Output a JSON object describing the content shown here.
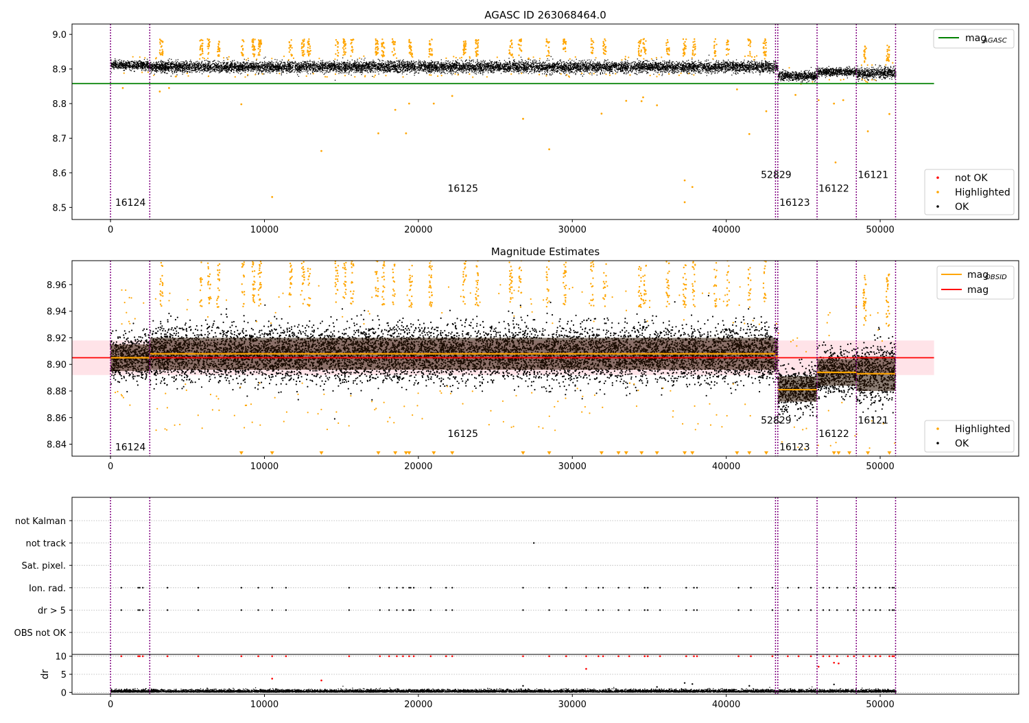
{
  "figure": {
    "width": 1500,
    "height": 1050
  },
  "colors": {
    "ok": "#000000",
    "highlighted": "#FFA500",
    "not_ok": "#FF0000",
    "agasc_line": "#008000",
    "obsid_mag": "#FFA500",
    "mag_line": "#FF0000",
    "mag_band": "#FFC0CB",
    "obsid_band": "#2B1300",
    "boundary": "#800080",
    "grid": "#B0B0B0"
  },
  "chart_data": [
    {
      "type": "scatter",
      "title": "AGASC ID 263068464.0",
      "xlim": [
        -2500,
        59000
      ],
      "ylim": [
        8.465,
        9.03
      ],
      "x_ticks": [
        0,
        10000,
        20000,
        30000,
        40000,
        50000
      ],
      "x_tick_labels": [
        "0",
        "10000",
        "20000",
        "30000",
        "40000",
        "50000"
      ],
      "y_ticks": [
        8.5,
        8.6,
        8.7,
        8.8,
        8.9,
        9.0
      ],
      "y_tick_labels": [
        "8.5",
        "8.6",
        "8.7",
        "8.8",
        "8.9",
        "9.0"
      ],
      "agasc_mag": 8.858,
      "agasc_mag_xrange": [
        -2500,
        53500
      ],
      "obsid_boundaries": [
        0,
        2550,
        43200,
        43350,
        45900,
        48450,
        51000
      ],
      "obsids": [
        {
          "label": "16124",
          "x": 300,
          "y": 8.505
        },
        {
          "label": "16125",
          "x": 21900,
          "y": 8.545
        },
        {
          "label": "52829",
          "x": 42250,
          "y": 8.585
        },
        {
          "label": "16123",
          "x": 43450,
          "y": 8.505
        },
        {
          "label": "16122",
          "x": 46000,
          "y": 8.545
        },
        {
          "label": "16121",
          "x": 48550,
          "y": 8.585
        }
      ],
      "ok_segments": [
        {
          "x": [
            0,
            2550
          ],
          "center": 8.912,
          "halfwidth": 0.016
        },
        {
          "x": [
            2550,
            43200
          ],
          "center": 8.907,
          "halfwidth": 0.021
        },
        {
          "x": [
            43200,
            43350
          ],
          "center": 8.905,
          "halfwidth": 0.02
        },
        {
          "x": [
            43350,
            45900
          ],
          "center": 8.881,
          "halfwidth": 0.017
        },
        {
          "x": [
            45900,
            48450
          ],
          "center": 8.893,
          "halfwidth": 0.015
        },
        {
          "x": [
            48450,
            51000
          ],
          "center": 8.889,
          "halfwidth": 0.02
        }
      ],
      "highlighted_points": [
        [
          800,
          8.845
        ],
        [
          3200,
          8.835
        ],
        [
          3800,
          8.845
        ],
        [
          8500,
          8.798
        ],
        [
          10500,
          8.53
        ],
        [
          13700,
          8.663
        ],
        [
          17400,
          8.714
        ],
        [
          18500,
          8.782
        ],
        [
          19200,
          8.714
        ],
        [
          19400,
          8.8
        ],
        [
          21000,
          8.8
        ],
        [
          22200,
          8.822
        ],
        [
          26800,
          8.756
        ],
        [
          28500,
          8.668
        ],
        [
          31900,
          8.771
        ],
        [
          33500,
          8.808
        ],
        [
          34500,
          8.807
        ],
        [
          34600,
          8.818
        ],
        [
          35500,
          8.795
        ],
        [
          37300,
          8.578
        ],
        [
          37300,
          8.515
        ],
        [
          37800,
          8.559
        ],
        [
          40700,
          8.841
        ],
        [
          41500,
          8.712
        ],
        [
          42600,
          8.778
        ],
        [
          44500,
          8.825
        ],
        [
          46000,
          8.81
        ],
        [
          47000,
          8.8
        ],
        [
          47100,
          8.63
        ],
        [
          47600,
          8.81
        ],
        [
          49200,
          8.72
        ],
        [
          50600,
          8.77
        ]
      ],
      "highlighted_columns": [
        3300,
        5900,
        6400,
        7000,
        8600,
        9300,
        9700,
        11700,
        12500,
        12900,
        14700,
        15200,
        15700,
        17300,
        17700,
        18400,
        19500,
        20800,
        23000,
        23800,
        26000,
        26600,
        28400,
        29500,
        31300,
        32100,
        34400,
        34700,
        36200,
        37300,
        37900,
        39300,
        40100,
        41500,
        42500,
        49000,
        50500
      ],
      "legend": [
        {
          "kind": "line",
          "color": "#008000",
          "label": "mag",
          "sub": "AGASC"
        }
      ],
      "legend2": [
        {
          "kind": "dot",
          "color": "#FF0000",
          "label": "not OK"
        },
        {
          "kind": "dot",
          "color": "#FFA500",
          "label": "Highlighted"
        },
        {
          "kind": "dot",
          "color": "#000000",
          "label": "OK"
        }
      ]
    },
    {
      "type": "scatter",
      "title": "Magnitude Estimates",
      "xlim": [
        -2500,
        59000
      ],
      "ylim": [
        8.831,
        8.978
      ],
      "x_ticks": [
        0,
        10000,
        20000,
        30000,
        40000,
        50000
      ],
      "x_tick_labels": [
        "0",
        "10000",
        "20000",
        "30000",
        "40000",
        "50000"
      ],
      "y_ticks": [
        8.84,
        8.86,
        8.88,
        8.9,
        8.92,
        8.94,
        8.96
      ],
      "y_tick_labels": [
        "8.84",
        "8.86",
        "8.88",
        "8.90",
        "8.92",
        "8.94",
        "8.96"
      ],
      "mag": 8.905,
      "mag_band": [
        8.892,
        8.918
      ],
      "mag_xrange": [
        -2500,
        53500
      ],
      "obsid_mags": [
        {
          "x": [
            0,
            2550
          ],
          "mag": 8.905,
          "band": [
            8.895,
            8.915
          ]
        },
        {
          "x": [
            2550,
            43200
          ],
          "mag": 8.908,
          "band": [
            8.896,
            8.92
          ]
        },
        {
          "x": [
            43200,
            43350
          ],
          "mag": 8.906,
          "band": [
            8.896,
            8.918
          ]
        },
        {
          "x": [
            43350,
            45900
          ],
          "mag": 8.881,
          "band": [
            8.872,
            8.891
          ]
        },
        {
          "x": [
            45900,
            48450
          ],
          "mag": 8.894,
          "band": [
            8.884,
            8.904
          ]
        },
        {
          "x": [
            48450,
            51000
          ],
          "mag": 8.893,
          "band": [
            8.88,
            8.906
          ]
        }
      ],
      "obsid_boundaries": [
        0,
        2550,
        43200,
        43350,
        45900,
        48450,
        51000
      ],
      "obsids": [
        {
          "label": "16124",
          "x": 300,
          "y": 8.8355
        },
        {
          "label": "16125",
          "x": 21900,
          "y": 8.8455
        },
        {
          "label": "52829",
          "x": 42250,
          "y": 8.8555
        },
        {
          "label": "16123",
          "x": 43450,
          "y": 8.8355
        },
        {
          "label": "16122",
          "x": 46000,
          "y": 8.8455
        },
        {
          "label": "16121",
          "x": 48550,
          "y": 8.8555
        }
      ],
      "clipped_markers_x": [
        8500,
        10500,
        13700,
        17400,
        18500,
        19200,
        19400,
        21000,
        22200,
        26800,
        28500,
        31900,
        33000,
        33500,
        34500,
        35500,
        37300,
        37800,
        40700,
        41500,
        42600,
        47000,
        47300,
        48000,
        49200,
        50600
      ],
      "legend": [
        {
          "kind": "line",
          "color": "#FFA500",
          "label": "mag",
          "sub": "OBSID"
        },
        {
          "kind": "line",
          "color": "#FF0000",
          "label": "mag",
          "sub": ""
        }
      ],
      "legend2": [
        {
          "kind": "dot",
          "color": "#FFA500",
          "label": "Highlighted"
        },
        {
          "kind": "dot",
          "color": "#000000",
          "label": "OK"
        }
      ]
    },
    {
      "type": "scatter",
      "title": "",
      "xlim": [
        -2500,
        59000
      ],
      "flag_rows": [
        "not Kalman",
        "not track",
        "Sat. pixel.",
        "Ion. rad.",
        "dr > 5",
        "OBS not OK"
      ],
      "flag_points": {
        "not track": [
          27500
        ],
        "Ion. rad.": [
          700,
          1800,
          1900,
          2100,
          3700,
          5700,
          8500,
          9600,
          10500,
          11400,
          15500,
          17500,
          18100,
          18600,
          19000,
          19400,
          19500,
          19700,
          20800,
          21800,
          22200,
          26800,
          28500,
          29600,
          30900,
          31700,
          32000,
          33000,
          33700,
          34700,
          34900,
          35700,
          37400,
          37900,
          38100,
          40800,
          41600,
          43000,
          44000,
          44700,
          45500,
          46300,
          46700,
          47200,
          47900,
          48300,
          48900,
          49300,
          49700,
          50000,
          50600,
          50800,
          50900
        ],
        "dr > 5": [
          700,
          1800,
          1900,
          2100,
          3700,
          5700,
          8500,
          9600,
          10500,
          11400,
          15500,
          17500,
          18100,
          18600,
          19000,
          19400,
          19500,
          19700,
          20800,
          21800,
          22200,
          26800,
          28500,
          29600,
          30900,
          31700,
          32000,
          33000,
          33700,
          34700,
          34900,
          35700,
          37400,
          37900,
          38100,
          40800,
          41600,
          43000,
          44000,
          44700,
          45500,
          46300,
          46700,
          47200,
          47900,
          48300,
          48900,
          49300,
          49700,
          50000,
          50600,
          50800,
          50900
        ]
      },
      "obsid_boundaries": [
        0,
        2550,
        43200,
        43350,
        45900,
        48450,
        51000
      ],
      "dr": {
        "ylabel": "dr",
        "ylim": [
          -0.5,
          10.5
        ],
        "y_ticks": [
          0,
          5,
          10
        ],
        "y_tick_labels": [
          "0",
          "5",
          "10"
        ],
        "x_ticks": [
          0,
          10000,
          20000,
          30000,
          40000,
          50000
        ],
        "x_tick_labels": [
          "0",
          "10000",
          "20000",
          "30000",
          "40000",
          "50000"
        ],
        "red_points": [
          [
            700,
            10
          ],
          [
            1800,
            10
          ],
          [
            1900,
            10
          ],
          [
            2100,
            10
          ],
          [
            3700,
            10
          ],
          [
            5700,
            10
          ],
          [
            8500,
            10
          ],
          [
            9600,
            10
          ],
          [
            10500,
            3.8
          ],
          [
            10500,
            10
          ],
          [
            11400,
            10
          ],
          [
            13700,
            3.3
          ],
          [
            15500,
            10
          ],
          [
            17500,
            10
          ],
          [
            18100,
            10
          ],
          [
            18600,
            10
          ],
          [
            19000,
            10
          ],
          [
            19400,
            10
          ],
          [
            19700,
            10
          ],
          [
            20800,
            10
          ],
          [
            21800,
            10
          ],
          [
            22200,
            10
          ],
          [
            26800,
            10
          ],
          [
            28500,
            10
          ],
          [
            29600,
            10
          ],
          [
            30900,
            6.5
          ],
          [
            30900,
            10
          ],
          [
            31700,
            10
          ],
          [
            32000,
            10
          ],
          [
            33000,
            10
          ],
          [
            33700,
            10
          ],
          [
            34700,
            10
          ],
          [
            34900,
            10
          ],
          [
            35700,
            10
          ],
          [
            37400,
            10
          ],
          [
            37900,
            10
          ],
          [
            38100,
            10
          ],
          [
            40800,
            10
          ],
          [
            41600,
            10
          ],
          [
            43000,
            10
          ],
          [
            44000,
            10
          ],
          [
            44700,
            10
          ],
          [
            45500,
            10
          ],
          [
            46000,
            7.1
          ],
          [
            46300,
            10
          ],
          [
            46700,
            10
          ],
          [
            47000,
            8.2
          ],
          [
            47200,
            10
          ],
          [
            47300,
            8.0
          ],
          [
            47900,
            10
          ],
          [
            48300,
            10
          ],
          [
            48900,
            10
          ],
          [
            49300,
            10
          ],
          [
            49700,
            10
          ],
          [
            50000,
            10
          ],
          [
            50600,
            10
          ],
          [
            50800,
            10
          ],
          [
            50900,
            10
          ]
        ],
        "black_extra": [
          [
            26800,
            1.8
          ],
          [
            37300,
            2.6
          ],
          [
            37800,
            2.3
          ],
          [
            41500,
            1.8
          ],
          [
            47000,
            2.2
          ],
          [
            35500,
            1.5
          ]
        ]
      }
    }
  ]
}
